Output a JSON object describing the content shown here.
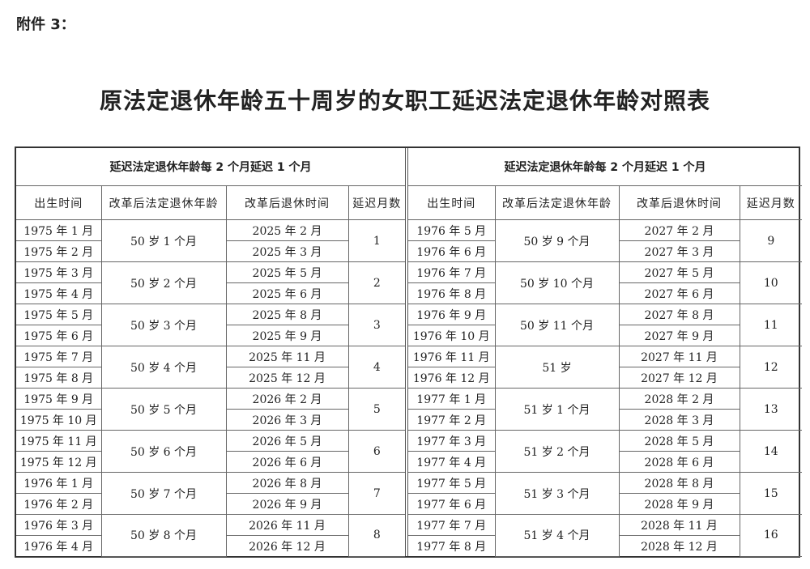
{
  "attachment_label": "附件 3：",
  "title": "原法定退休年龄五十周岁的女职工延迟法定退休年龄对照表",
  "tables": [
    {
      "caption": "延迟法定退休年龄每 2 个月延迟 1 个月",
      "headers": [
        "出生时间",
        "改革后法定退休年龄",
        "改革后退休时间",
        "延迟月数"
      ],
      "groups": [
        {
          "birth": [
            "1975 年 1 月",
            "1975 年 2 月"
          ],
          "age": "50 岁 1 个月",
          "retire": [
            "2025 年 2 月",
            "2025 年 3 月"
          ],
          "months": "1"
        },
        {
          "birth": [
            "1975 年 3 月",
            "1975 年 4 月"
          ],
          "age": "50 岁 2 个月",
          "retire": [
            "2025 年 5 月",
            "2025 年 6 月"
          ],
          "months": "2"
        },
        {
          "birth": [
            "1975 年 5 月",
            "1975 年 6 月"
          ],
          "age": "50 岁 3 个月",
          "retire": [
            "2025 年 8 月",
            "2025 年 9 月"
          ],
          "months": "3"
        },
        {
          "birth": [
            "1975 年 7 月",
            "1975 年 8 月"
          ],
          "age": "50 岁 4 个月",
          "retire": [
            "2025 年 11 月",
            "2025 年 12 月"
          ],
          "months": "4"
        },
        {
          "birth": [
            "1975 年 9 月",
            "1975 年 10 月"
          ],
          "age": "50 岁 5 个月",
          "retire": [
            "2026 年 2 月",
            "2026 年 3 月"
          ],
          "months": "5"
        },
        {
          "birth": [
            "1975 年 11 月",
            "1975 年 12 月"
          ],
          "age": "50 岁 6 个月",
          "retire": [
            "2026 年 5 月",
            "2026 年 6 月"
          ],
          "months": "6"
        },
        {
          "birth": [
            "1976 年 1 月",
            "1976 年 2 月"
          ],
          "age": "50 岁 7 个月",
          "retire": [
            "2026 年 8 月",
            "2026 年 9 月"
          ],
          "months": "7"
        },
        {
          "birth": [
            "1976 年 3 月",
            "1976 年 4 月"
          ],
          "age": "50 岁 8 个月",
          "retire": [
            "2026 年 11 月",
            "2026 年 12 月"
          ],
          "months": "8"
        }
      ]
    },
    {
      "caption": "延迟法定退休年龄每 2 个月延迟 1 个月",
      "headers": [
        "出生时间",
        "改革后法定退休年龄",
        "改革后退休时间",
        "延迟月数"
      ],
      "groups": [
        {
          "birth": [
            "1976 年 5 月",
            "1976 年 6 月"
          ],
          "age": "50 岁 9 个月",
          "retire": [
            "2027 年 2 月",
            "2027 年 3 月"
          ],
          "months": "9"
        },
        {
          "birth": [
            "1976 年 7 月",
            "1976 年 8 月"
          ],
          "age": "50 岁 10 个月",
          "retire": [
            "2027 年 5 月",
            "2027 年 6 月"
          ],
          "months": "10"
        },
        {
          "birth": [
            "1976 年 9 月",
            "1976 年 10 月"
          ],
          "age": "50 岁 11 个月",
          "retire": [
            "2027 年 8 月",
            "2027 年 9 月"
          ],
          "months": "11"
        },
        {
          "birth": [
            "1976 年 11 月",
            "1976 年 12 月"
          ],
          "age": "51 岁",
          "retire": [
            "2027 年 11 月",
            "2027 年 12 月"
          ],
          "months": "12"
        },
        {
          "birth": [
            "1977 年 1 月",
            "1977 年 2 月"
          ],
          "age": "51 岁 1 个月",
          "retire": [
            "2028 年 2 月",
            "2028 年 3 月"
          ],
          "months": "13"
        },
        {
          "birth": [
            "1977 年 3 月",
            "1977 年 4 月"
          ],
          "age": "51 岁 2 个月",
          "retire": [
            "2028 年 5 月",
            "2028 年 6 月"
          ],
          "months": "14"
        },
        {
          "birth": [
            "1977 年 5 月",
            "1977 年 6 月"
          ],
          "age": "51 岁 3 个月",
          "retire": [
            "2028 年 8 月",
            "2028 年 9 月"
          ],
          "months": "15"
        },
        {
          "birth": [
            "1977 年 7 月",
            "1977 年 8 月"
          ],
          "age": "51 岁 4 个月",
          "retire": [
            "2028 年 11 月",
            "2028 年 12 月"
          ],
          "months": "16"
        }
      ]
    }
  ]
}
